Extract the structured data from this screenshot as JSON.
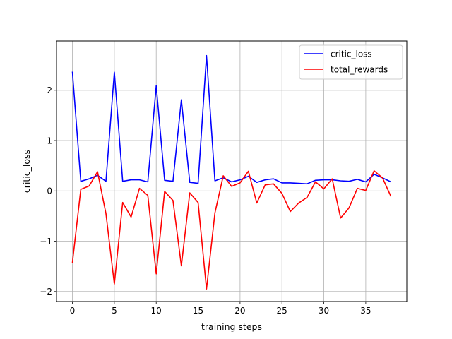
{
  "chart_data": {
    "type": "line",
    "title": "",
    "xlabel": "training steps",
    "ylabel": "critic_loss",
    "xlim": [
      -1.9,
      39.9
    ],
    "ylim": [
      -2.2,
      2.98
    ],
    "xticks": [
      0,
      5,
      10,
      15,
      20,
      25,
      30,
      35
    ],
    "yticks": [
      -2,
      -1,
      0,
      1,
      2
    ],
    "grid": true,
    "legend": {
      "position": "top-right"
    },
    "x": [
      0,
      1,
      2,
      3,
      4,
      5,
      6,
      7,
      8,
      9,
      10,
      11,
      12,
      13,
      14,
      15,
      16,
      17,
      18,
      19,
      20,
      21,
      22,
      23,
      24,
      25,
      26,
      27,
      28,
      29,
      30,
      31,
      32,
      33,
      34,
      35,
      36,
      37,
      38
    ],
    "series": [
      {
        "name": "critic_loss",
        "color": "#0000ff",
        "values": [
          2.37,
          0.19,
          0.24,
          0.31,
          0.19,
          2.36,
          0.19,
          0.22,
          0.22,
          0.18,
          2.09,
          0.21,
          0.19,
          1.81,
          0.17,
          0.15,
          2.69,
          0.2,
          0.26,
          0.18,
          0.22,
          0.29,
          0.17,
          0.22,
          0.24,
          0.16,
          0.16,
          0.15,
          0.14,
          0.21,
          0.22,
          0.22,
          0.2,
          0.19,
          0.23,
          0.18,
          0.33,
          0.26,
          0.18
        ]
      },
      {
        "name": "total_rewards",
        "color": "#ff0000",
        "values": [
          -1.43,
          0.03,
          0.1,
          0.38,
          -0.45,
          -1.85,
          -0.23,
          -0.52,
          0.05,
          -0.09,
          -1.65,
          -0.01,
          -0.19,
          -1.49,
          -0.04,
          -0.23,
          -1.95,
          -0.44,
          0.3,
          0.09,
          0.16,
          0.39,
          -0.24,
          0.12,
          0.14,
          -0.05,
          -0.41,
          -0.24,
          -0.13,
          0.18,
          0.04,
          0.24,
          -0.54,
          -0.34,
          0.05,
          0.01,
          0.4,
          0.26,
          -0.11
        ]
      }
    ]
  }
}
